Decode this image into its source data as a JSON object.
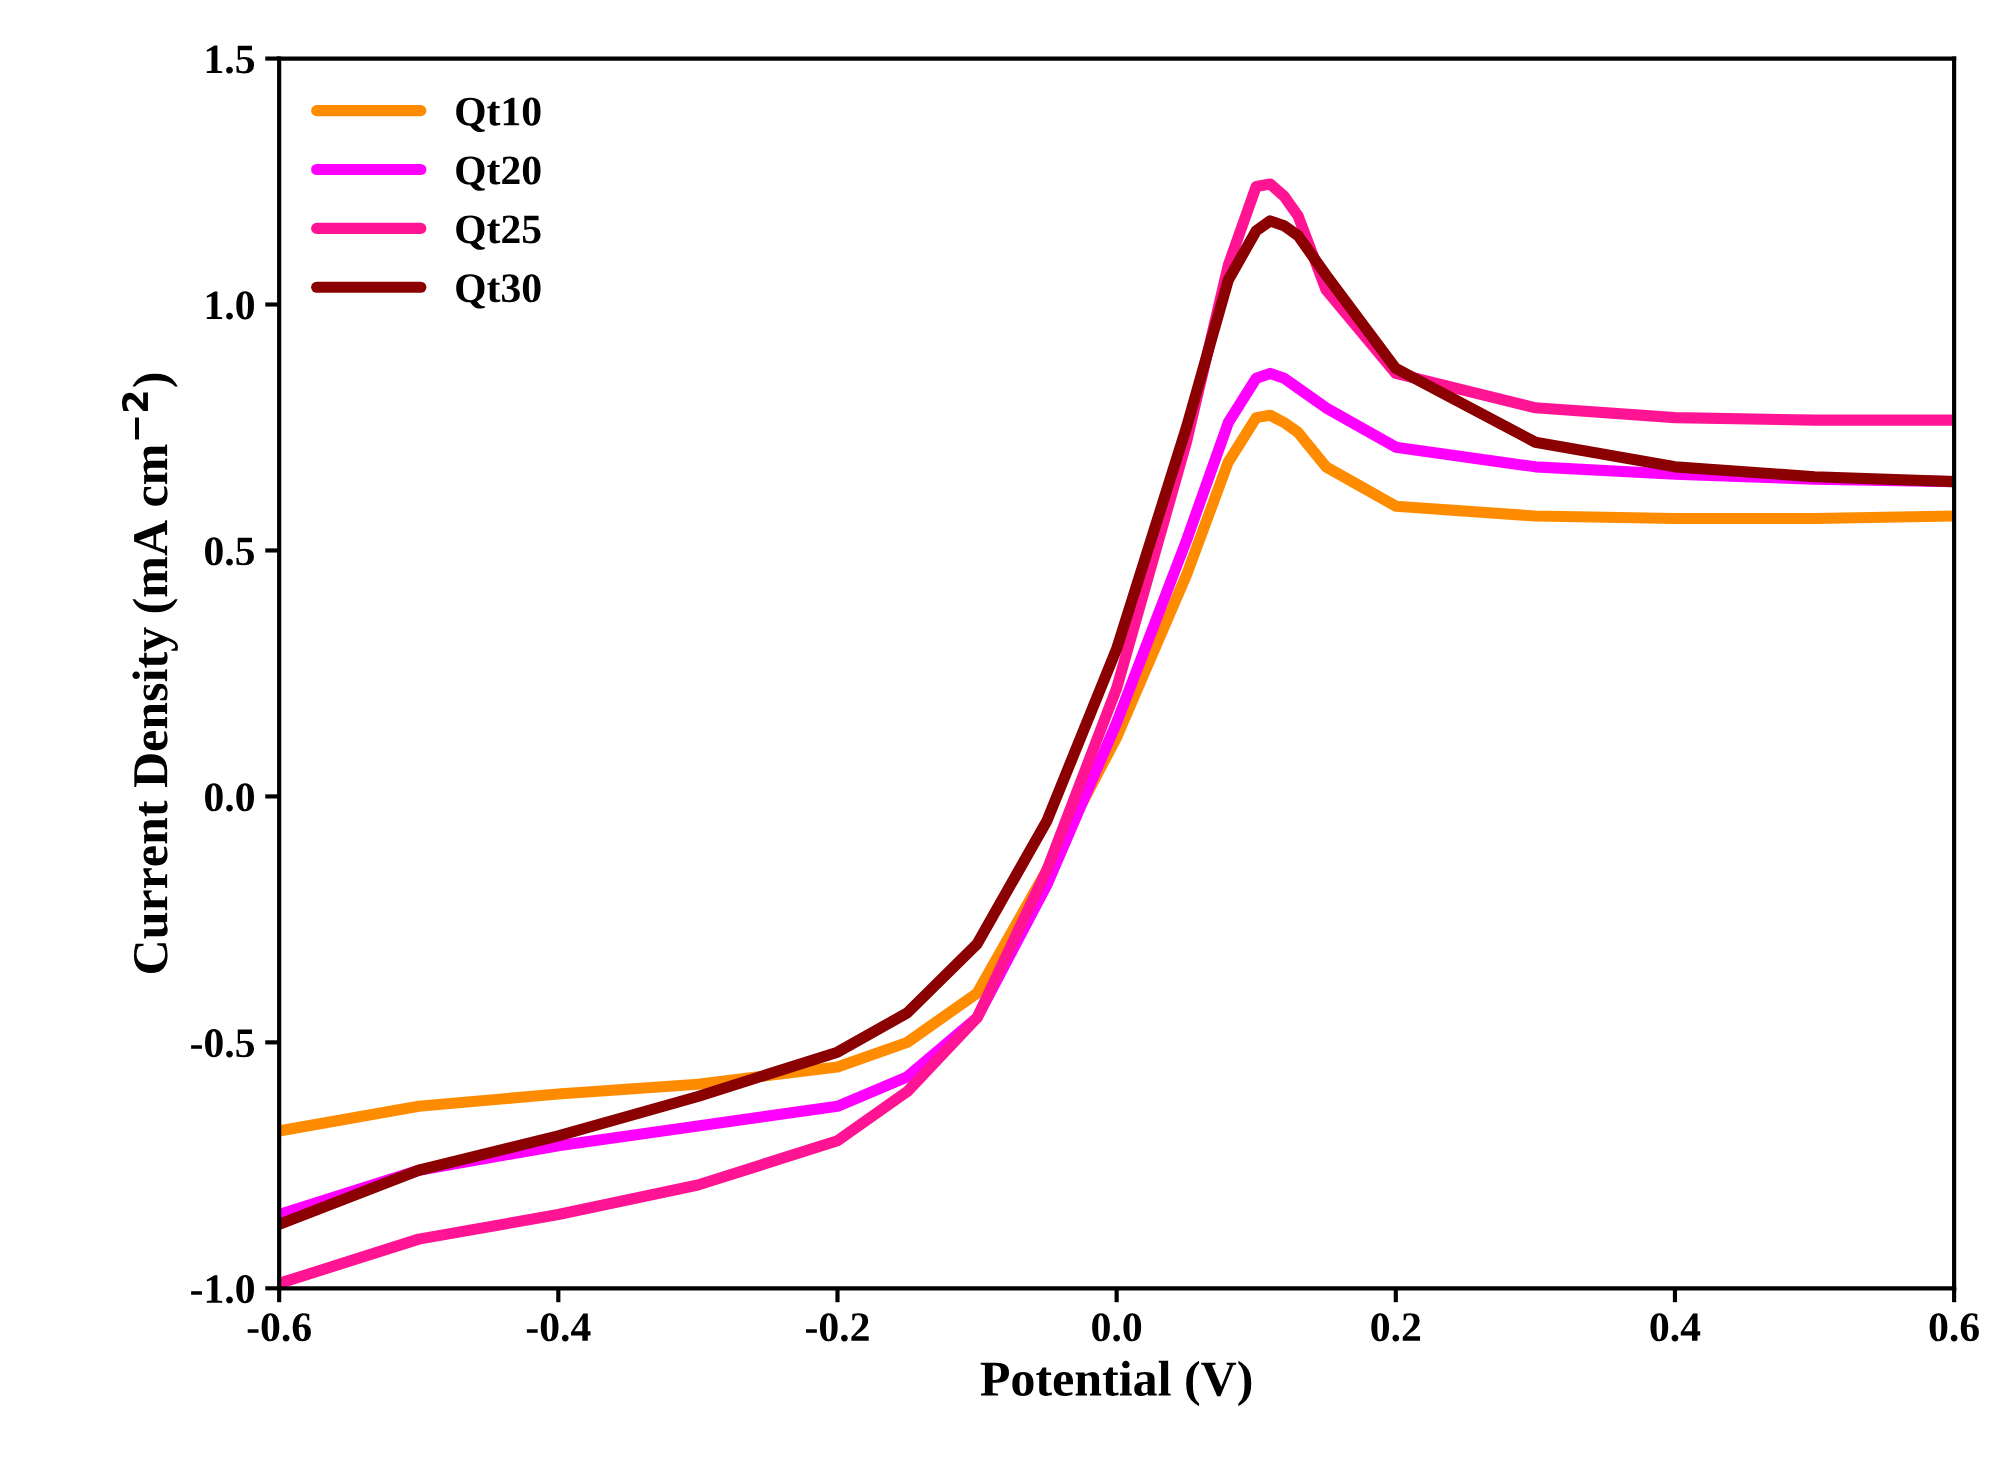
{
  "chart_data": {
    "type": "line",
    "xlabel": "Potential (V)",
    "ylabel": "Current Density (mA cm$^{−2}$)",
    "x": [
      -0.6,
      -0.5,
      -0.4,
      -0.3,
      -0.2,
      -0.15,
      -0.1,
      -0.05,
      0,
      0.05,
      0.08,
      0.1,
      0.11,
      0.12,
      0.13,
      0.15,
      0.2,
      0.3,
      0.4,
      0.5,
      0.6
    ],
    "series": [
      {
        "name": "Qt10",
        "color": "#ff8c00",
        "values": [
          -0.68,
          -0.63,
          -0.605,
          -0.585,
          -0.55,
          -0.5,
          -0.4,
          -0.15,
          0.12,
          0.45,
          0.68,
          0.77,
          0.775,
          0.76,
          0.74,
          0.67,
          0.59,
          0.57,
          0.565,
          0.565,
          0.57
        ]
      },
      {
        "name": "Qt20",
        "color": "#ff00ff",
        "values": [
          -0.85,
          -0.76,
          -0.71,
          -0.67,
          -0.63,
          -0.57,
          -0.45,
          -0.18,
          0.15,
          0.52,
          0.76,
          0.85,
          0.86,
          0.85,
          0.83,
          0.79,
          0.71,
          0.67,
          0.655,
          0.645,
          0.64
        ]
      },
      {
        "name": "Qt25",
        "color": "#ff1493",
        "values": [
          -0.99,
          -0.9,
          -0.85,
          -0.79,
          -0.7,
          -0.6,
          -0.45,
          -0.15,
          0.22,
          0.72,
          1.08,
          1.24,
          1.245,
          1.22,
          1.18,
          1.03,
          0.86,
          0.79,
          0.77,
          0.765,
          0.765
        ]
      },
      {
        "name": "Qt30",
        "color": "#8b0000",
        "values": [
          -0.87,
          -0.76,
          -0.69,
          -0.61,
          -0.52,
          -0.44,
          -0.3,
          -0.05,
          0.3,
          0.75,
          1.05,
          1.15,
          1.17,
          1.16,
          1.14,
          1.06,
          0.87,
          0.72,
          0.67,
          0.65,
          0.64
        ]
      }
    ],
    "xlim": [
      -0.6,
      0.6
    ],
    "xticks": [
      {
        "value": -0.6,
        "label": "-0.6"
      },
      {
        "value": -0.4,
        "label": "-0.4"
      },
      {
        "value": -0.2,
        "label": "-0.2"
      },
      {
        "value": 0,
        "label": "0.0"
      },
      {
        "value": 0.2,
        "label": "0.2"
      },
      {
        "value": 0.4,
        "label": "0.4"
      },
      {
        "value": 0.6,
        "label": "0.6"
      }
    ],
    "ylim": [
      -1.0,
      1.5
    ],
    "yticks": [
      {
        "value": -1.0,
        "label": "-1.0"
      },
      {
        "value": -0.5,
        "label": "-0.5"
      },
      {
        "value": 0,
        "label": "0.0"
      },
      {
        "value": 0.5,
        "label": "0.5"
      },
      {
        "value": 1.0,
        "label": "1.0"
      },
      {
        "value": 1.5,
        "label": "1.5"
      }
    ],
    "legend": "top left",
    "grid": false,
    "marker": "none",
    "line_style": "solid"
  }
}
